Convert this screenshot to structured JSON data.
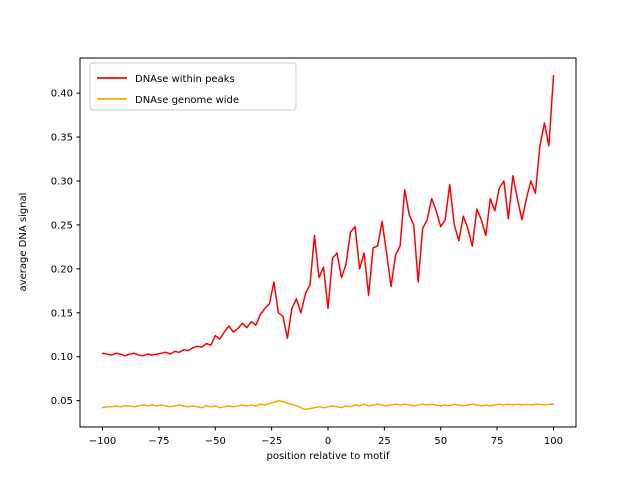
{
  "figure": {
    "background": "#ffffff"
  },
  "chart_data": {
    "type": "line",
    "title": "",
    "xlabel": "position relative to motif",
    "ylabel": "average DNA signal",
    "xlim": [
      -110,
      110
    ],
    "ylim": [
      0.02,
      0.44
    ],
    "xticks": [
      -100,
      -75,
      -50,
      -25,
      0,
      25,
      50,
      75,
      100
    ],
    "yticks": [
      0.05,
      0.1,
      0.15,
      0.2,
      0.25,
      0.3,
      0.35,
      0.4
    ],
    "x_start": -100,
    "x_step": 2,
    "grid": false,
    "legend_position": "upper left",
    "series": [
      {
        "name": "DNAse within peaks",
        "color": "#ff0000",
        "values": [
          0.104,
          0.103,
          0.102,
          0.104,
          0.103,
          0.101,
          0.103,
          0.104,
          0.102,
          0.101,
          0.103,
          0.102,
          0.103,
          0.104,
          0.105,
          0.103,
          0.106,
          0.105,
          0.108,
          0.107,
          0.11,
          0.112,
          0.111,
          0.115,
          0.113,
          0.124,
          0.12,
          0.128,
          0.135,
          0.128,
          0.132,
          0.138,
          0.133,
          0.14,
          0.136,
          0.148,
          0.155,
          0.16,
          0.185,
          0.15,
          0.146,
          0.121,
          0.155,
          0.166,
          0.15,
          0.172,
          0.182,
          0.238,
          0.19,
          0.202,
          0.155,
          0.212,
          0.218,
          0.19,
          0.205,
          0.242,
          0.248,
          0.2,
          0.218,
          0.17,
          0.224,
          0.226,
          0.254,
          0.218,
          0.18,
          0.216,
          0.226,
          0.29,
          0.262,
          0.25,
          0.185,
          0.246,
          0.256,
          0.28,
          0.266,
          0.248,
          0.256,
          0.296,
          0.25,
          0.232,
          0.26,
          0.246,
          0.226,
          0.268,
          0.256,
          0.238,
          0.28,
          0.266,
          0.292,
          0.3,
          0.257,
          0.306,
          0.28,
          0.256,
          0.28,
          0.3,
          0.286,
          0.34,
          0.366,
          0.34,
          0.42
        ]
      },
      {
        "name": "DNAse genome wide",
        "color": "#ffa500",
        "values": [
          0.042,
          0.043,
          0.043,
          0.044,
          0.043,
          0.044,
          0.044,
          0.043,
          0.044,
          0.045,
          0.044,
          0.045,
          0.044,
          0.045,
          0.044,
          0.043,
          0.044,
          0.045,
          0.044,
          0.043,
          0.044,
          0.043,
          0.042,
          0.044,
          0.043,
          0.044,
          0.042,
          0.043,
          0.044,
          0.043,
          0.044,
          0.045,
          0.044,
          0.045,
          0.044,
          0.046,
          0.045,
          0.047,
          0.048,
          0.05,
          0.049,
          0.047,
          0.046,
          0.044,
          0.042,
          0.04,
          0.041,
          0.042,
          0.043,
          0.042,
          0.043,
          0.044,
          0.043,
          0.042,
          0.044,
          0.043,
          0.045,
          0.044,
          0.046,
          0.044,
          0.045,
          0.046,
          0.045,
          0.044,
          0.045,
          0.046,
          0.045,
          0.046,
          0.045,
          0.044,
          0.045,
          0.046,
          0.045,
          0.046,
          0.045,
          0.044,
          0.045,
          0.044,
          0.046,
          0.045,
          0.044,
          0.045,
          0.046,
          0.045,
          0.044,
          0.045,
          0.044,
          0.045,
          0.046,
          0.045,
          0.046,
          0.045,
          0.046,
          0.045,
          0.046,
          0.045,
          0.046,
          0.046,
          0.045,
          0.046,
          0.046
        ]
      }
    ]
  }
}
